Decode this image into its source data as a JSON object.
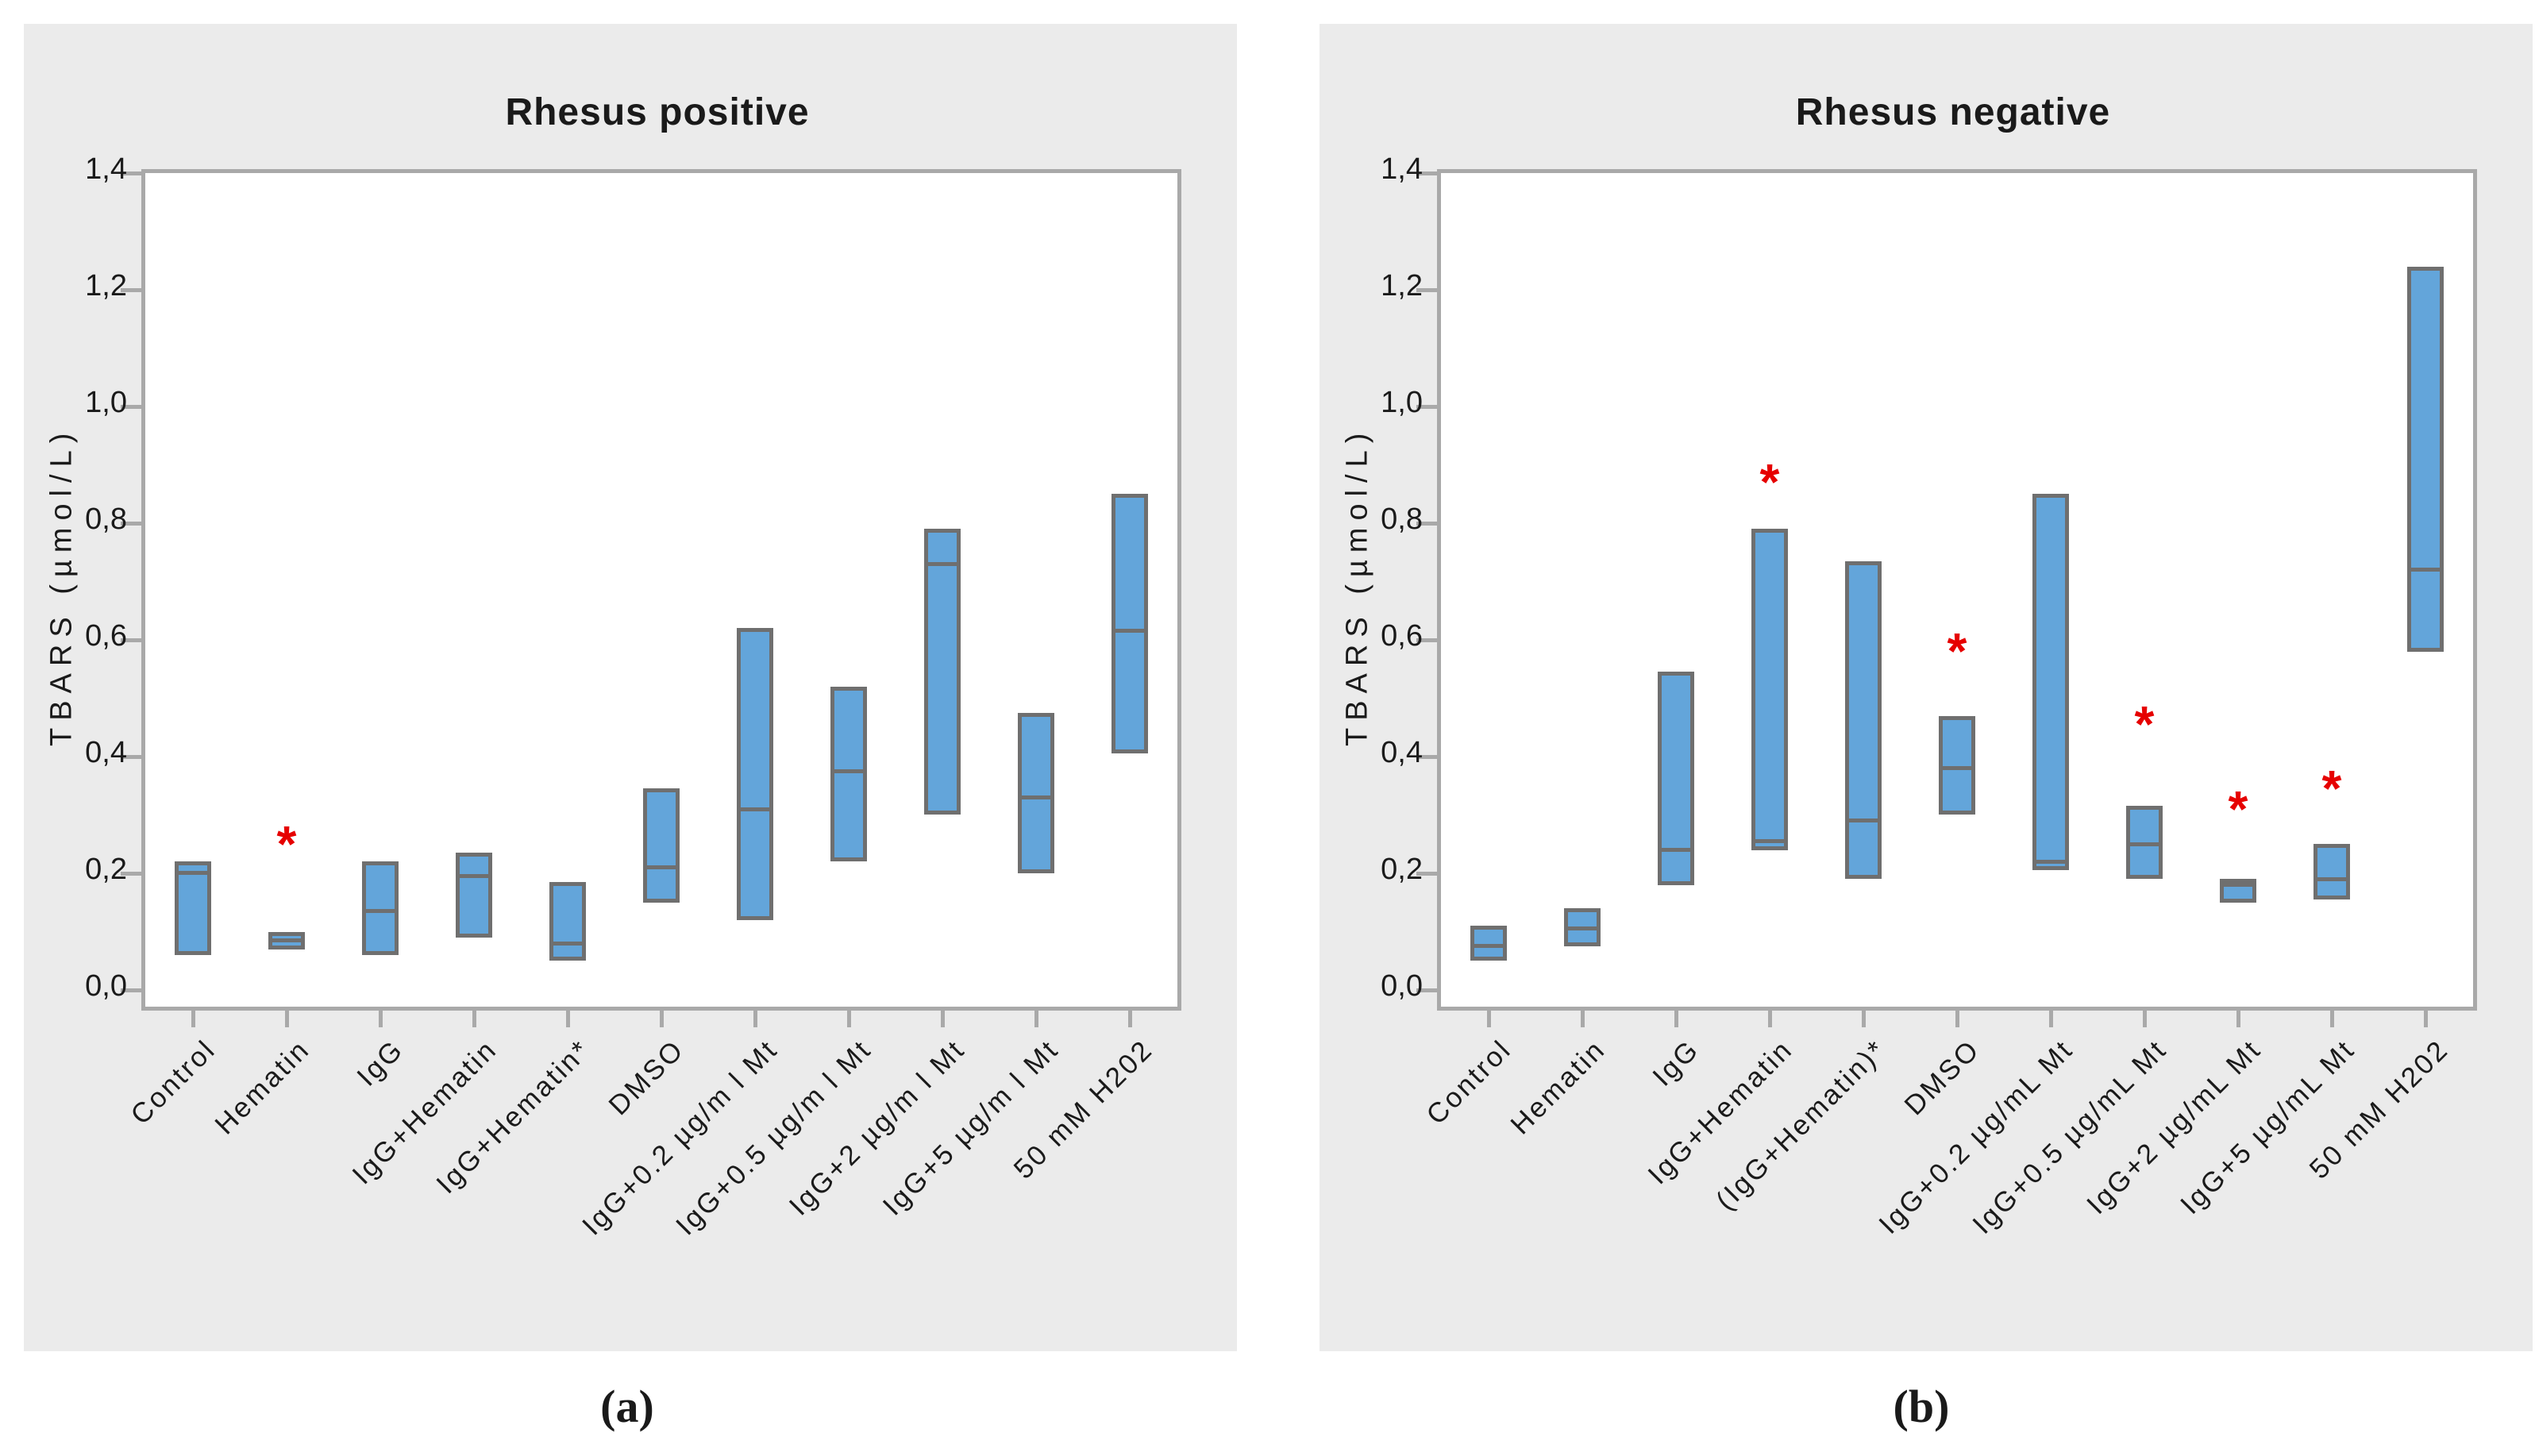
{
  "page": {
    "caption_a": "(a)",
    "caption_b": "(b)"
  },
  "style": {
    "panel_bg": "#ebebeb",
    "plot_bg": "#ffffff",
    "frame_color": "#a9a9a9",
    "box_fill": "#63a5da",
    "box_border": "#6f6f6f",
    "asterisk_color": "#e60000",
    "text_color": "#1a1a1a"
  },
  "chart_data": [
    {
      "type": "box",
      "title": "Rhesus positive",
      "ylabel": "TBARS (µmol/L)",
      "ylim": [
        0.0,
        1.4
      ],
      "grid": false,
      "ytick_labels": [
        "0,0",
        "0,2",
        "0,4",
        "0,6",
        "0,8",
        "1,0",
        "1,2",
        "1,4"
      ],
      "ytick_values": [
        0.0,
        0.2,
        0.4,
        0.6,
        0.8,
        1.0,
        1.2,
        1.4
      ],
      "categories": [
        "Control",
        "Hematin",
        "IgG",
        "IgG+Hematin",
        "IgG+Hematin*",
        "DMSO",
        "IgG+0.2 µg/m l Mt",
        "IgG+0.5 µg/m l Mt",
        "IgG+2 µg/m l Mt",
        "IgG+5 µg/m l Mt",
        "50 mM H202"
      ],
      "boxes": [
        {
          "category": "Control",
          "min": 0.06,
          "median": 0.2,
          "max": 0.22
        },
        {
          "category": "Hematin",
          "min": 0.07,
          "median": 0.085,
          "max": 0.1
        },
        {
          "category": "IgG",
          "min": 0.06,
          "median": 0.135,
          "max": 0.22
        },
        {
          "category": "IgG+Hematin",
          "min": 0.09,
          "median": 0.195,
          "max": 0.235
        },
        {
          "category": "IgG+Hematin*",
          "min": 0.05,
          "median": 0.08,
          "max": 0.185
        },
        {
          "category": "DMSO",
          "min": 0.15,
          "median": 0.21,
          "max": 0.345
        },
        {
          "category": "IgG+0.2 µg/m l Mt",
          "min": 0.12,
          "median": 0.31,
          "max": 0.62
        },
        {
          "category": "IgG+0.5 µg/m l Mt",
          "min": 0.22,
          "median": 0.375,
          "max": 0.52
        },
        {
          "category": "IgG+2 µg/m l Mt",
          "min": 0.3,
          "median": 0.73,
          "max": 0.79
        },
        {
          "category": "IgG+5 µg/m l Mt",
          "min": 0.2,
          "median": 0.33,
          "max": 0.475
        },
        {
          "category": "50 mM H202",
          "min": 0.405,
          "median": 0.615,
          "max": 0.85
        }
      ],
      "significance_asterisks": [
        {
          "category": "Hematin",
          "category_index": 1,
          "value": 0.26
        }
      ]
    },
    {
      "type": "box",
      "title": "Rhesus negative",
      "ylabel": "TBARS (µmol/L)",
      "ylim": [
        0.0,
        1.4
      ],
      "grid": false,
      "ytick_labels": [
        "0,0",
        "0,2",
        "0,4",
        "0,6",
        "0,8",
        "1,0",
        "1,2",
        "1,4"
      ],
      "ytick_values": [
        0.0,
        0.2,
        0.4,
        0.6,
        0.8,
        1.0,
        1.2,
        1.4
      ],
      "categories": [
        "Control",
        "Hematin",
        "IgG",
        "IgG+Hematin",
        "(IgG+Hematin)*",
        "DMSO",
        "IgG+0.2 µg/mL Mt",
        "IgG+0.5 µg/mL Mt",
        "IgG+2 µg/mL Mt",
        "IgG+5 µg/mL Mt",
        "50 mM H202"
      ],
      "boxes": [
        {
          "category": "Control",
          "min": 0.05,
          "median": 0.075,
          "max": 0.11
        },
        {
          "category": "Hematin",
          "min": 0.075,
          "median": 0.105,
          "max": 0.14
        },
        {
          "category": "IgG",
          "min": 0.18,
          "median": 0.24,
          "max": 0.545
        },
        {
          "category": "IgG+Hematin",
          "min": 0.24,
          "median": 0.255,
          "max": 0.79
        },
        {
          "category": "(IgG+Hematin)*",
          "min": 0.19,
          "median": 0.29,
          "max": 0.735
        },
        {
          "category": "DMSO",
          "min": 0.3,
          "median": 0.38,
          "max": 0.47
        },
        {
          "category": "IgG+0.2 µg/mL Mt",
          "min": 0.205,
          "median": 0.22,
          "max": 0.85
        },
        {
          "category": "IgG+0.5 µg/mL Mt",
          "min": 0.19,
          "median": 0.25,
          "max": 0.315
        },
        {
          "category": "IgG+2 µg/mL Mt",
          "min": 0.15,
          "median": 0.183,
          "max": 0.19
        },
        {
          "category": "IgG+5 µg/mL Mt",
          "min": 0.155,
          "median": 0.19,
          "max": 0.25
        },
        {
          "category": "50 mM H202",
          "min": 0.58,
          "median": 0.72,
          "max": 1.24
        }
      ],
      "significance_asterisks": [
        {
          "category": "IgG+Hematin",
          "category_index": 3,
          "value": 0.88
        },
        {
          "category": "DMSO",
          "category_index": 5,
          "value": 0.59
        },
        {
          "category": "IgG+0.5 µg/mL Mt",
          "category_index": 7,
          "value": 0.465
        },
        {
          "category": "IgG+2 µg/mL Mt",
          "category_index": 8,
          "value": 0.32
        },
        {
          "category": "IgG+5 µg/mL Mt",
          "category_index": 9,
          "value": 0.355
        }
      ]
    }
  ]
}
